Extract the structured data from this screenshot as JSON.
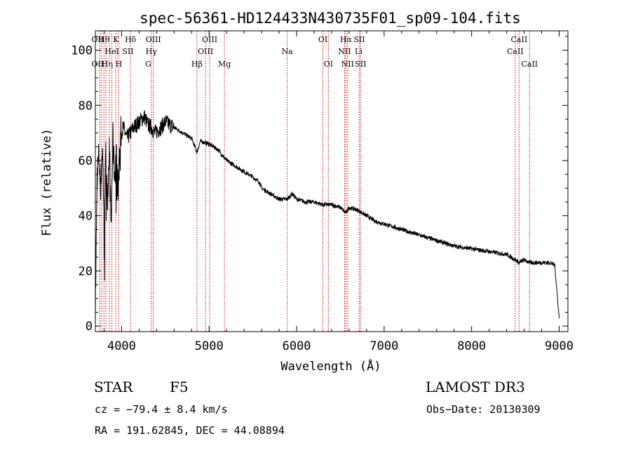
{
  "chart_data": {
    "type": "line",
    "title": "spec-56361-HD124433N430735F01_sp09-104.fits",
    "xlabel": "Wavelength (Å)",
    "ylabel": "Flux (relative)",
    "xlim": [
      3700,
      9100
    ],
    "ylim": [
      -2,
      107
    ],
    "xticks": [
      4000,
      5000,
      6000,
      7000,
      8000,
      9000
    ],
    "yticks": [
      0,
      20,
      40,
      60,
      80,
      100
    ],
    "grid": false,
    "series": [
      {
        "name": "spectrum",
        "x": [
          3700,
          3720,
          3740,
          3760,
          3780,
          3800,
          3820,
          3840,
          3860,
          3880,
          3900,
          3920,
          3940,
          3960,
          3970,
          3990,
          4020,
          4060,
          4100,
          4140,
          4200,
          4260,
          4300,
          4340,
          4380,
          4450,
          4500,
          4550,
          4600,
          4700,
          4800,
          4861,
          4900,
          5000,
          5100,
          5200,
          5300,
          5400,
          5500,
          5577,
          5600,
          5700,
          5800,
          5893,
          5950,
          6000,
          6100,
          6200,
          6300,
          6400,
          6500,
          6563,
          6600,
          6700,
          6800,
          6900,
          7000,
          7100,
          7200,
          7400,
          7600,
          7800,
          8000,
          8200,
          8400,
          8500,
          8542,
          8600,
          8662,
          8700,
          8800,
          8900,
          8950,
          9000
        ],
        "y": [
          5,
          55,
          62,
          50,
          65,
          40,
          62,
          48,
          66,
          35,
          68,
          55,
          62,
          50,
          58,
          70,
          72,
          68,
          70,
          72,
          74,
          76,
          73,
          72,
          70,
          72,
          74,
          73,
          72,
          70,
          68,
          63,
          67,
          66,
          64,
          60,
          58,
          56,
          54,
          52,
          50,
          48,
          46,
          46,
          48,
          46,
          45,
          45,
          44,
          44,
          43,
          41,
          43,
          42,
          40,
          38,
          37,
          36,
          35,
          33,
          31,
          29,
          28,
          27,
          26,
          24,
          23,
          24,
          23,
          23,
          23,
          23,
          22,
          3
        ]
      }
    ],
    "spectral_lines": [
      {
        "label": "Hθ",
        "wavelength": 3797,
        "row": 0
      },
      {
        "label": "OII",
        "wavelength": 3727,
        "row": 0
      },
      {
        "label": "K",
        "wavelength": 3934,
        "row": 0
      },
      {
        "label": "Hδ",
        "wavelength": 4102,
        "row": 0
      },
      {
        "label": "OIII",
        "wavelength": 4363,
        "row": 0
      },
      {
        "label": "OIII",
        "wavelength": 5007,
        "row": 0
      },
      {
        "label": "OI",
        "wavelength": 6300,
        "row": 0
      },
      {
        "label": "Hα",
        "wavelength": 6563,
        "row": 0
      },
      {
        "label": "SII",
        "wavelength": 6716,
        "row": 0
      },
      {
        "label": "CaII",
        "wavelength": 8542,
        "row": 0
      },
      {
        "label": "HeI",
        "wavelength": 3889,
        "row": 1
      },
      {
        "label": "SII",
        "wavelength": 4072,
        "row": 1
      },
      {
        "label": "Hγ",
        "wavelength": 4340,
        "row": 1
      },
      {
        "label": "OIII",
        "wavelength": 4959,
        "row": 1
      },
      {
        "label": "Na",
        "wavelength": 5893,
        "row": 1
      },
      {
        "label": "NII",
        "wavelength": 6548,
        "row": 1
      },
      {
        "label": "Li",
        "wavelength": 6708,
        "row": 1
      },
      {
        "label": "CaII",
        "wavelength": 8498,
        "row": 1
      },
      {
        "label": "OII",
        "wavelength": 3727,
        "row": 2
      },
      {
        "label": "Hη",
        "wavelength": 3835,
        "row": 2
      },
      {
        "label": "H",
        "wavelength": 3968,
        "row": 2
      },
      {
        "label": "G",
        "wavelength": 4304,
        "row": 2
      },
      {
        "label": "Hβ",
        "wavelength": 4861,
        "row": 2
      },
      {
        "label": "Mg",
        "wavelength": 5175,
        "row": 2
      },
      {
        "label": "OI",
        "wavelength": 6363,
        "row": 2
      },
      {
        "label": "NII",
        "wavelength": 6583,
        "row": 2
      },
      {
        "label": "SII",
        "wavelength": 6731,
        "row": 2
      },
      {
        "label": "CaII",
        "wavelength": 8662,
        "row": 2
      }
    ],
    "extra_lines": [
      3750,
      3771,
      3798,
      3820,
      3860,
      3889,
      3934,
      3968,
      4102,
      4340,
      4363,
      4861,
      4959,
      5007,
      5175,
      5893,
      6300,
      6363,
      6548,
      6563,
      6583,
      6716,
      6731,
      8498,
      8542,
      8662
    ],
    "colors": {
      "spectrum": "#000000",
      "lines": "#cc0000",
      "axes": "#000000"
    }
  },
  "info": {
    "object_class": "STAR",
    "subclass": "F5",
    "survey": "LAMOST DR3",
    "cz": "cz = −79.4 ± 8.4 km/s",
    "obs_date": "Obs−Date: 20130309",
    "coords": "RA = 191.62845, DEC =  44.08894"
  }
}
